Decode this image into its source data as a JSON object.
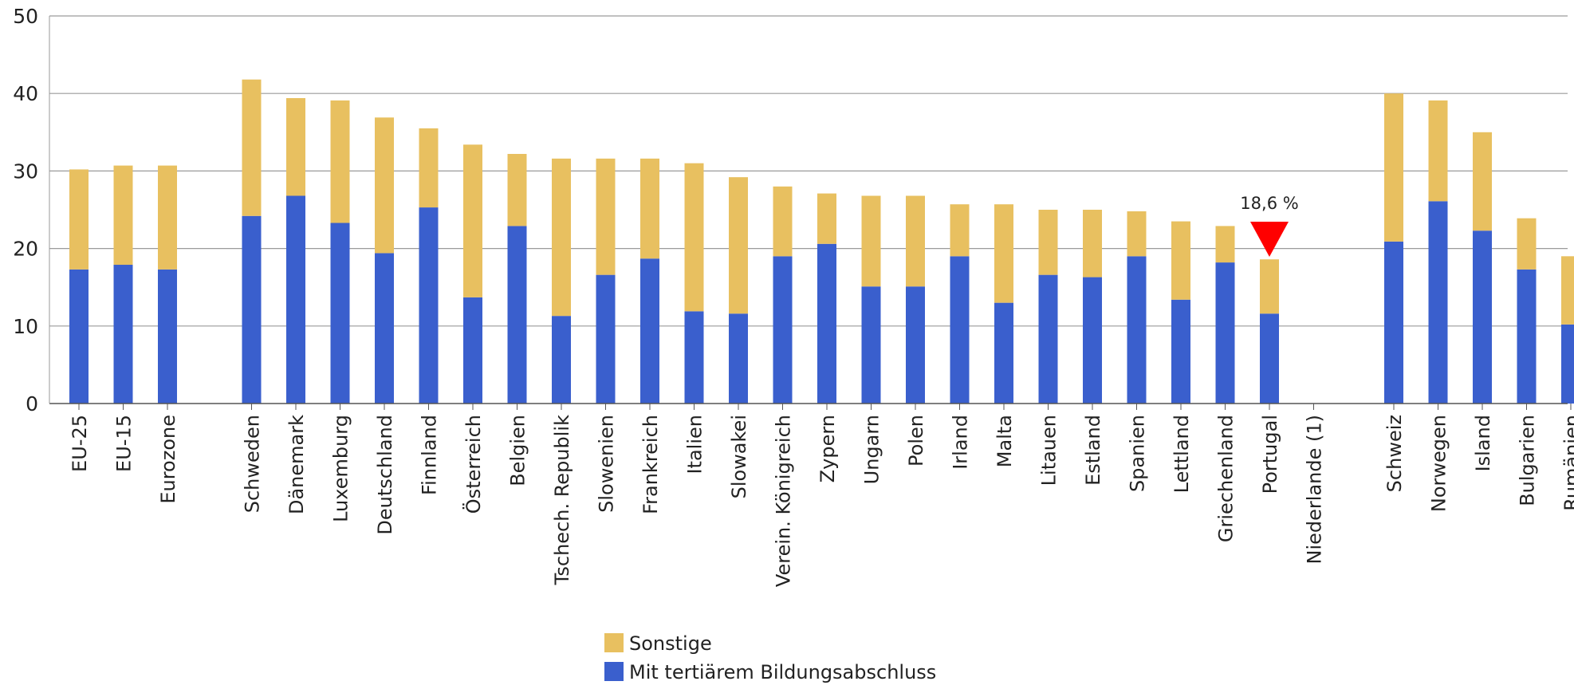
{
  "chart_data": {
    "type": "bar",
    "stacked": true,
    "ylim": [
      0,
      50
    ],
    "yticks": [
      "0",
      "10",
      "20",
      "30",
      "40",
      "50"
    ],
    "grid": true,
    "legend_position": "bottom-center",
    "categories": [
      "EU-25",
      "EU-15",
      "Eurozone",
      "Schweden",
      "Dänemark",
      "Luxemburg",
      "Deutschland",
      "Finnland",
      "Österreich",
      "Belgien",
      "Tschech. Republik",
      "Slowenien",
      "Frankreich",
      "Italien",
      "Slowakei",
      "Verein. Königreich",
      "Zypern",
      "Ungarn",
      "Polen",
      "Irland",
      "Malta",
      "Litauen",
      "Estland",
      "Spanien",
      "Lettland",
      "Griechenland",
      "Portugal",
      "Niederlande (1)",
      "Schweiz",
      "Norwegen",
      "Island",
      "Bulgarien",
      "Rumänien"
    ],
    "series": [
      {
        "name": "Mit tertiärem Bildungsabschluss",
        "color": "#3a5fcd",
        "values": [
          17.3,
          17.9,
          17.3,
          24.2,
          26.8,
          23.3,
          19.4,
          25.3,
          13.7,
          22.9,
          11.3,
          16.6,
          18.7,
          11.9,
          11.6,
          19.0,
          20.6,
          15.1,
          15.1,
          19.0,
          13.0,
          16.6,
          16.3,
          19.0,
          13.4,
          18.2,
          11.6,
          null,
          20.9,
          26.1,
          22.3,
          17.3,
          10.2
        ]
      },
      {
        "name": "Sonstige",
        "color": "#e8c060",
        "values": [
          12.9,
          12.8,
          13.4,
          17.6,
          12.6,
          15.8,
          17.5,
          10.2,
          19.7,
          9.3,
          20.3,
          15.0,
          12.9,
          19.1,
          17.6,
          9.0,
          6.5,
          11.7,
          11.7,
          6.7,
          12.7,
          8.4,
          8.7,
          5.8,
          10.1,
          4.7,
          7.0,
          null,
          19.1,
          13.0,
          12.7,
          6.6,
          8.8
        ]
      }
    ],
    "annotation": {
      "category": "Portugal",
      "label": "18,6 %",
      "marker_color": "#ff0000"
    }
  }
}
